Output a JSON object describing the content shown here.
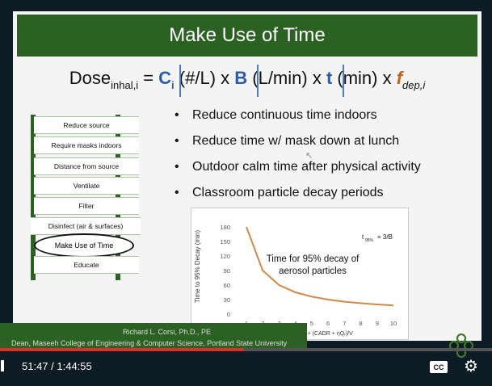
{
  "slide": {
    "title": "Make Use of Time",
    "formula": {
      "dose": "Dose",
      "dose_sub": "inhal,i",
      "equals": " = ",
      "c": "C",
      "c_sub": "i",
      "unit1": " (#/L) x ",
      "b": "B",
      "unit2": " (L/min) x ",
      "t": "t",
      "unit3": " (min) x ",
      "f": "f",
      "f_sub": "dep,i"
    },
    "ladder": {
      "rungs": [
        "Reduce source",
        "Require masks indoors",
        "Distance from source",
        "Ventilate",
        "Filter",
        "Disinfect (air & surfaces)",
        "Make Use of Time",
        "Educate"
      ]
    },
    "bullets": [
      "Reduce continuous time indoors",
      "Reduce time w/ mask down at lunch",
      "Outdoor calm time after physical activity",
      "Classroom particle decay periods"
    ],
    "chart_label_line1": "Time for 95% decay of",
    "chart_label_line2": "aerosol particles",
    "t95_note": "= 3/B",
    "t95_prefix": "t",
    "t95_sub": "95%",
    "footer": {
      "name": "Richard L. Corsi, Ph.D., PE",
      "affiliation": "Dean, Maseeh College of Engineering & Computer Science, Portland State University"
    }
  },
  "player": {
    "time": "51:47 / 1:44:55",
    "progress": 0.494,
    "cc_label": "CC",
    "accent": "#e52d27"
  },
  "colors": {
    "slide_green": "#2c6124",
    "formula_blue": "#2f5aa8",
    "curve_orange": "#d0894a"
  },
  "chart_data": {
    "type": "line",
    "ylabel": "Time to 95% Decay (min)",
    "xlabel": "B (hr⁻¹) = AER + (CADR + ηQᵣ)/V",
    "ylim": [
      0,
      180
    ],
    "xlim": [
      1,
      10
    ],
    "x_ticks": [
      1,
      2,
      3,
      4,
      5,
      6,
      7,
      8,
      9,
      10
    ],
    "y_ticks": [
      0,
      30,
      60,
      90,
      120,
      150,
      180
    ],
    "series": [
      {
        "values": [
          [
            1,
            180
          ],
          [
            2,
            90
          ],
          [
            3,
            60
          ],
          [
            4,
            45
          ],
          [
            5,
            36
          ],
          [
            6,
            30
          ],
          [
            7,
            25.7
          ],
          [
            8,
            22.5
          ],
          [
            9,
            20
          ],
          [
            10,
            18
          ]
        ]
      }
    ]
  }
}
